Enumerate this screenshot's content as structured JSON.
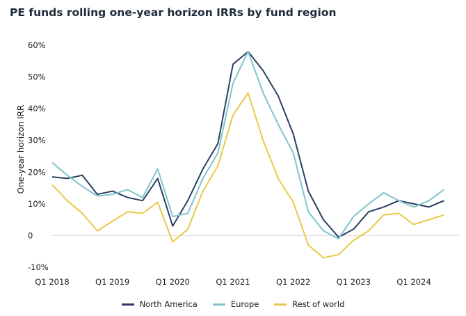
{
  "chart_data": {
    "type": "line",
    "title": "PE funds rolling one-year horizon IRRs by fund region",
    "ylabel": "One-year horizon IRR",
    "xlabel": "",
    "ylim": [
      -10,
      60
    ],
    "yticks": [
      "60%",
      "50%",
      "40%",
      "30%",
      "20%",
      "10%",
      "0",
      "-10%"
    ],
    "ytick_values": [
      60,
      50,
      40,
      30,
      20,
      10,
      0,
      -10
    ],
    "x": [
      "Q1 2018",
      "Q2 2018",
      "Q3 2018",
      "Q4 2018",
      "Q1 2019",
      "Q2 2019",
      "Q3 2019",
      "Q4 2019",
      "Q1 2020",
      "Q2 2020",
      "Q3 2020",
      "Q4 2020",
      "Q1 2021",
      "Q2 2021",
      "Q3 2021",
      "Q4 2021",
      "Q1 2022",
      "Q2 2022",
      "Q3 2022",
      "Q4 2022",
      "Q1 2023",
      "Q2 2023",
      "Q3 2023",
      "Q4 2023",
      "Q1 2024",
      "Q2 2024",
      "Q3 2024",
      "Q4 2024"
    ],
    "xtick_labels": [
      "Q1 2018",
      "Q1 2019",
      "Q1 2020",
      "Q1 2021",
      "Q1 2022",
      "Q1 2023",
      "Q1 2024"
    ],
    "xtick_indices": [
      0,
      4,
      8,
      12,
      16,
      20,
      24
    ],
    "grid": false,
    "legend": "bottom-center",
    "series": [
      {
        "name": "North America",
        "color": "#2a3d64",
        "values": [
          18.5,
          18,
          19,
          13,
          14,
          12,
          11,
          18,
          3,
          11,
          21,
          29,
          54,
          58,
          52,
          44,
          32,
          14,
          5,
          -0.5,
          2,
          7.5,
          9,
          11,
          10,
          9,
          11,
          null
        ]
      },
      {
        "name": "Europe",
        "color": "#7ec4cb",
        "values": [
          23,
          19,
          15.5,
          12.5,
          13,
          14.5,
          12,
          21,
          6,
          7,
          18,
          26,
          48,
          58,
          45,
          35,
          26,
          7.5,
          1.5,
          -1,
          6,
          10,
          13.5,
          11,
          9,
          11,
          14.5,
          null
        ]
      },
      {
        "name": "Rest of world",
        "color": "#e8c945",
        "values": [
          16,
          11,
          7,
          1.5,
          4.5,
          7.5,
          7,
          10.5,
          -2,
          2,
          14,
          22,
          38,
          45,
          30,
          18,
          10.5,
          -3,
          -7,
          -6,
          -1.5,
          1.5,
          6.5,
          7,
          3.5,
          5,
          6.5,
          null
        ]
      }
    ]
  }
}
